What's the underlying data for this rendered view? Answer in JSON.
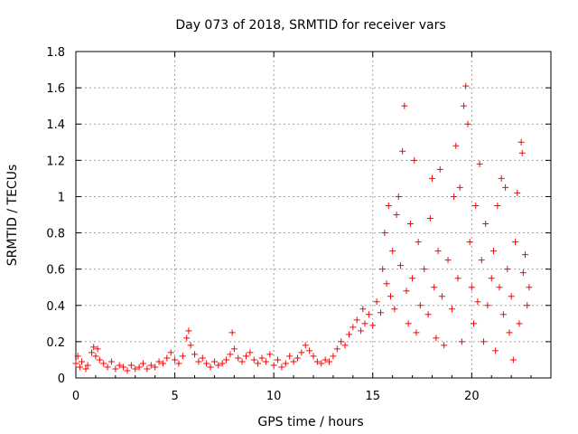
{
  "chart_data": {
    "type": "scatter",
    "title": "Day 073 of 2018, SRMTID for receiver vars",
    "xlabel": "GPS time / hours",
    "ylabel": "SRMTID / TECUs",
    "xlim": [
      0,
      24
    ],
    "ylim": [
      0,
      1.8
    ],
    "x_ticks": [
      0,
      5,
      10,
      15,
      20
    ],
    "x_tick_labels": [
      "0",
      "5",
      "10",
      "15",
      "20"
    ],
    "y_ticks": [
      0,
      0.2,
      0.4,
      0.6,
      0.8,
      1,
      1.2,
      1.4,
      1.6,
      1.8
    ],
    "y_tick_labels": [
      "0",
      "0.2",
      "0.4",
      "0.6",
      "0.8",
      "1",
      "1.2",
      "1.4",
      "1.6",
      "1.8"
    ],
    "grid": true,
    "marker": "+",
    "series_color": "#ff0000",
    "series": [
      {
        "name": "SRMTID",
        "points": [
          [
            0.0,
            0.08
          ],
          [
            0.1,
            0.12
          ],
          [
            0.2,
            0.06
          ],
          [
            0.3,
            0.09
          ],
          [
            0.5,
            0.05
          ],
          [
            0.6,
            0.07
          ],
          [
            0.8,
            0.14
          ],
          [
            0.9,
            0.17
          ],
          [
            1.0,
            0.12
          ],
          [
            1.1,
            0.16
          ],
          [
            1.2,
            0.1
          ],
          [
            1.4,
            0.08
          ],
          [
            1.6,
            0.06
          ],
          [
            1.8,
            0.09
          ],
          [
            2.0,
            0.05
          ],
          [
            2.2,
            0.07
          ],
          [
            2.4,
            0.06
          ],
          [
            2.6,
            0.04
          ],
          [
            2.8,
            0.07
          ],
          [
            3.0,
            0.05
          ],
          [
            3.2,
            0.06
          ],
          [
            3.4,
            0.08
          ],
          [
            3.6,
            0.05
          ],
          [
            3.8,
            0.07
          ],
          [
            4.0,
            0.06
          ],
          [
            4.2,
            0.09
          ],
          [
            4.4,
            0.08
          ],
          [
            4.6,
            0.11
          ],
          [
            4.8,
            0.14
          ],
          [
            5.0,
            0.1
          ],
          [
            5.2,
            0.08
          ],
          [
            5.4,
            0.12
          ],
          [
            5.6,
            0.22
          ],
          [
            5.7,
            0.26
          ],
          [
            5.8,
            0.18
          ],
          [
            6.0,
            0.13
          ],
          [
            6.2,
            0.09
          ],
          [
            6.4,
            0.11
          ],
          [
            6.6,
            0.08
          ],
          [
            6.8,
            0.06
          ],
          [
            7.0,
            0.09
          ],
          [
            7.2,
            0.07
          ],
          [
            7.4,
            0.08
          ],
          [
            7.6,
            0.1
          ],
          [
            7.8,
            0.13
          ],
          [
            7.9,
            0.25
          ],
          [
            8.0,
            0.16
          ],
          [
            8.2,
            0.11
          ],
          [
            8.4,
            0.09
          ],
          [
            8.6,
            0.12
          ],
          [
            8.8,
            0.14
          ],
          [
            9.0,
            0.1
          ],
          [
            9.2,
            0.08
          ],
          [
            9.4,
            0.11
          ],
          [
            9.6,
            0.09
          ],
          [
            9.8,
            0.13
          ],
          [
            10.0,
            0.07
          ],
          [
            10.2,
            0.1
          ],
          [
            10.4,
            0.06
          ],
          [
            10.6,
            0.08
          ],
          [
            10.8,
            0.12
          ],
          [
            11.0,
            0.09
          ],
          [
            11.2,
            0.11
          ],
          [
            11.4,
            0.14
          ],
          [
            11.6,
            0.18
          ],
          [
            11.8,
            0.15
          ],
          [
            12.0,
            0.12
          ],
          [
            12.2,
            0.09
          ],
          [
            12.4,
            0.08
          ],
          [
            12.6,
            0.1
          ],
          [
            12.8,
            0.09
          ],
          [
            13.0,
            0.12
          ],
          [
            13.2,
            0.16
          ],
          [
            13.4,
            0.2
          ],
          [
            13.6,
            0.18
          ],
          [
            13.8,
            0.24
          ],
          [
            14.0,
            0.28
          ],
          [
            14.2,
            0.32
          ],
          [
            14.4,
            0.26
          ],
          [
            14.5,
            0.38
          ],
          [
            14.6,
            0.3
          ],
          [
            14.8,
            0.35
          ],
          [
            15.0,
            0.29
          ],
          [
            15.2,
            0.42
          ],
          [
            15.4,
            0.36
          ],
          [
            15.5,
            0.6
          ],
          [
            15.6,
            0.8
          ],
          [
            15.7,
            0.52
          ],
          [
            15.8,
            0.95
          ],
          [
            15.9,
            0.45
          ],
          [
            16.0,
            0.7
          ],
          [
            16.1,
            0.38
          ],
          [
            16.2,
            0.9
          ],
          [
            16.3,
            1.0
          ],
          [
            16.4,
            0.62
          ],
          [
            16.5,
            1.25
          ],
          [
            16.6,
            1.5
          ],
          [
            16.7,
            0.48
          ],
          [
            16.8,
            0.3
          ],
          [
            16.9,
            0.85
          ],
          [
            17.0,
            0.55
          ],
          [
            17.1,
            1.2
          ],
          [
            17.2,
            0.25
          ],
          [
            17.3,
            0.75
          ],
          [
            17.4,
            0.4
          ],
          [
            17.6,
            0.6
          ],
          [
            17.8,
            0.35
          ],
          [
            17.9,
            0.88
          ],
          [
            18.0,
            1.1
          ],
          [
            18.1,
            0.5
          ],
          [
            18.2,
            0.22
          ],
          [
            18.3,
            0.7
          ],
          [
            18.4,
            1.15
          ],
          [
            18.5,
            0.45
          ],
          [
            18.6,
            0.18
          ],
          [
            18.8,
            0.65
          ],
          [
            19.0,
            0.38
          ],
          [
            19.1,
            1.0
          ],
          [
            19.2,
            1.28
          ],
          [
            19.3,
            0.55
          ],
          [
            19.4,
            1.05
          ],
          [
            19.5,
            0.2
          ],
          [
            19.6,
            1.5
          ],
          [
            19.7,
            1.61
          ],
          [
            19.8,
            1.4
          ],
          [
            19.9,
            0.75
          ],
          [
            20.0,
            0.5
          ],
          [
            20.1,
            0.3
          ],
          [
            20.2,
            0.95
          ],
          [
            20.3,
            0.42
          ],
          [
            20.4,
            1.18
          ],
          [
            20.5,
            0.65
          ],
          [
            20.6,
            0.2
          ],
          [
            20.7,
            0.85
          ],
          [
            20.8,
            0.4
          ],
          [
            21.0,
            0.55
          ],
          [
            21.1,
            0.7
          ],
          [
            21.2,
            0.15
          ],
          [
            21.3,
            0.95
          ],
          [
            21.4,
            0.5
          ],
          [
            21.5,
            1.1
          ],
          [
            21.6,
            0.35
          ],
          [
            21.7,
            1.05
          ],
          [
            21.8,
            0.6
          ],
          [
            21.9,
            0.25
          ],
          [
            22.0,
            0.45
          ],
          [
            22.1,
            0.1
          ],
          [
            22.2,
            0.75
          ],
          [
            22.3,
            1.02
          ],
          [
            22.4,
            0.3
          ],
          [
            22.5,
            1.3
          ],
          [
            22.55,
            1.24
          ],
          [
            22.6,
            0.58
          ],
          [
            22.7,
            0.68
          ],
          [
            22.8,
            0.4
          ],
          [
            22.9,
            0.5
          ]
        ]
      }
    ]
  }
}
